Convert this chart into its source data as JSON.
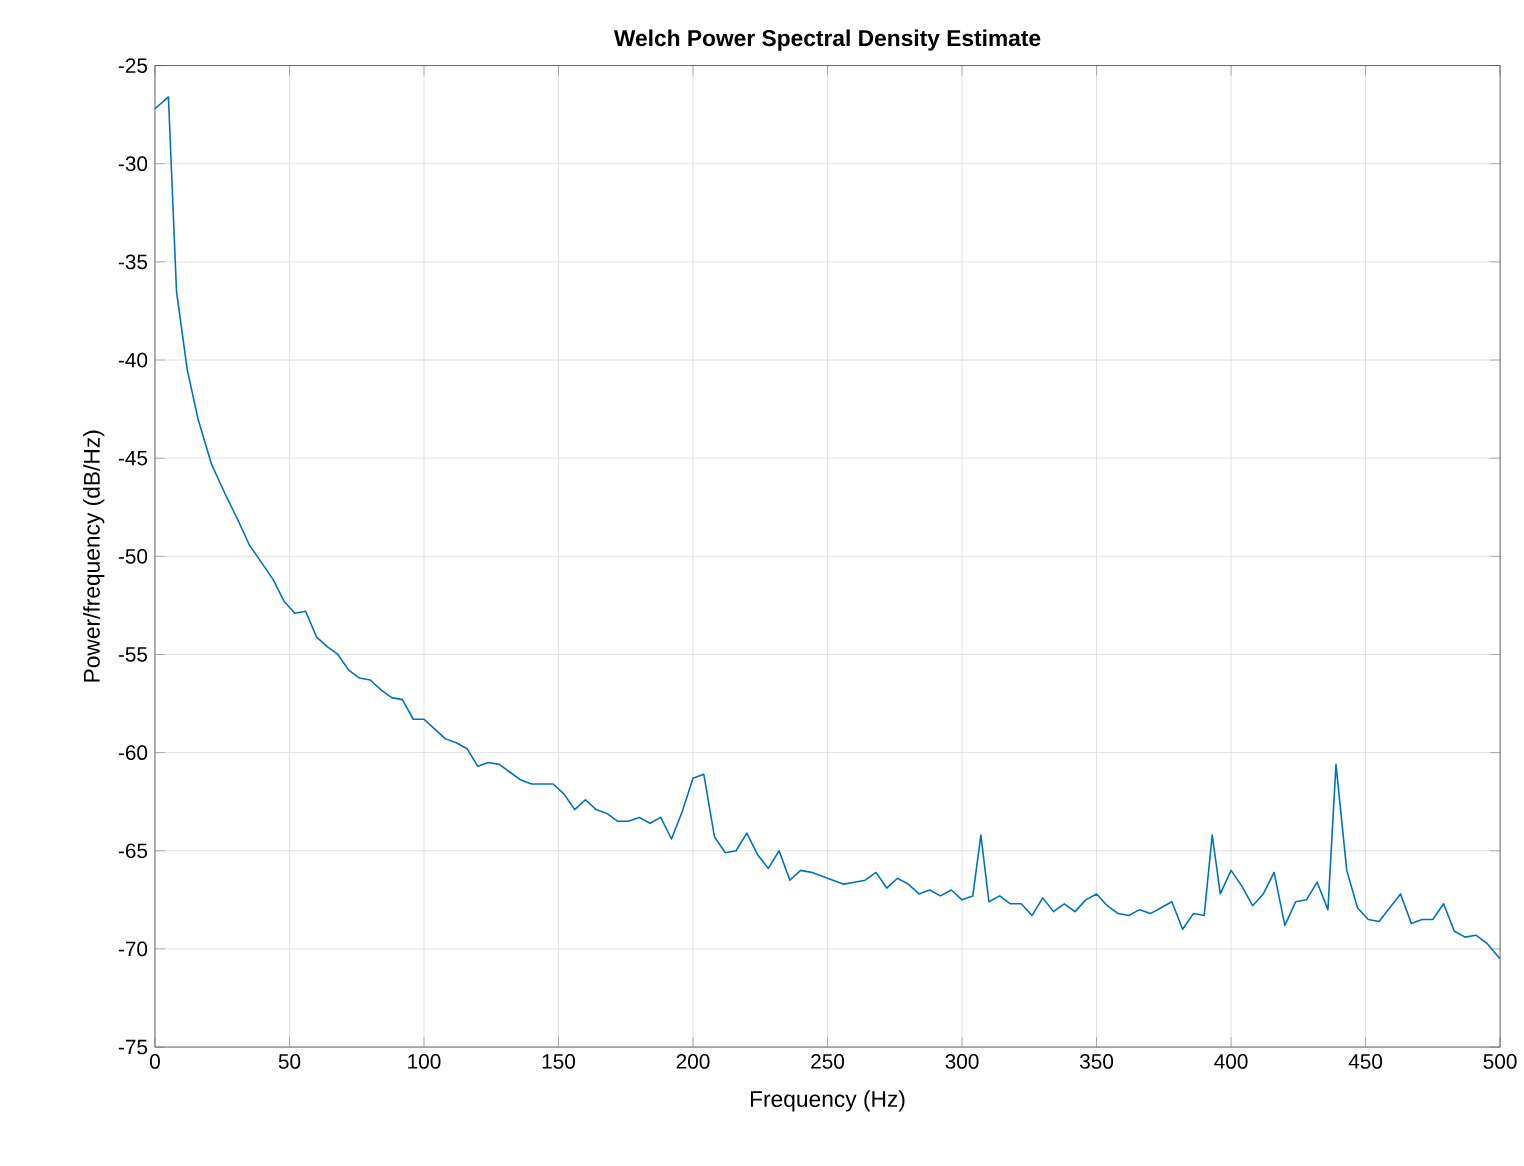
{
  "chart_data": {
    "type": "line",
    "title": "Welch Power Spectral Density Estimate",
    "xlabel": "Frequency (Hz)",
    "ylabel": "Power/frequency (dB/Hz)",
    "xlim": [
      0,
      500
    ],
    "ylim": [
      -75,
      -25
    ],
    "xticks": [
      0,
      50,
      100,
      150,
      200,
      250,
      300,
      350,
      400,
      450,
      500
    ],
    "yticks": [
      -75,
      -70,
      -65,
      -60,
      -55,
      -50,
      -45,
      -40,
      -35,
      -30,
      -25
    ],
    "grid": true,
    "marker": "none",
    "line_style": "solid",
    "series": [
      {
        "color": "#0072bd",
        "x": [
          0,
          5,
          8,
          12,
          16,
          21,
          26,
          31,
          35,
          40,
          44,
          48,
          52,
          56,
          60,
          64,
          68,
          72,
          76,
          80,
          84,
          88,
          92,
          96,
          100,
          104,
          108,
          112,
          116,
          120,
          124,
          128,
          132,
          136,
          140,
          144,
          148,
          152,
          156,
          160,
          164,
          168,
          172,
          176,
          180,
          184,
          188,
          192,
          196,
          200,
          204,
          208,
          212,
          216,
          220,
          224,
          228,
          232,
          236,
          240,
          244,
          248,
          252,
          256,
          260,
          264,
          268,
          272,
          276,
          280,
          284,
          288,
          292,
          296,
          300,
          304,
          307,
          310,
          314,
          318,
          322,
          326,
          330,
          334,
          338,
          342,
          346,
          350,
          354,
          358,
          362,
          366,
          370,
          374,
          378,
          382,
          386,
          390,
          393,
          396,
          400,
          404,
          408,
          412,
          416,
          420,
          424,
          428,
          432,
          436,
          439,
          443,
          447,
          451,
          455,
          459,
          463,
          467,
          471,
          475,
          479,
          483,
          487,
          491,
          495,
          500
        ],
        "values": [
          -27.2,
          -26.6,
          -36.5,
          -40.5,
          -43,
          -45.3,
          -46.8,
          -48.2,
          -49.4,
          -50.4,
          -51.2,
          -52.3,
          -52.9,
          -52.8,
          -54.1,
          -54.6,
          -55,
          -55.8,
          -56.2,
          -56.3,
          -56.8,
          -57.2,
          -57.3,
          -58.3,
          -58.3,
          -58.8,
          -59.3,
          -59.5,
          -59.8,
          -60.7,
          -60.5,
          -60.6,
          -61,
          -61.4,
          -61.6,
          -61.6,
          -61.6,
          -62.1,
          -62.9,
          -62.4,
          -62.9,
          -63.1,
          -63.5,
          -63.5,
          -63.3,
          -63.6,
          -63.3,
          -64.4,
          -63,
          -61.3,
          -61.1,
          -64.3,
          -65.1,
          -65,
          -64.1,
          -65.2,
          -65.9,
          -65,
          -66.5,
          -66,
          -66.1,
          -66.3,
          -66.5,
          -66.7,
          -66.6,
          -66.5,
          -66.1,
          -66.9,
          -66.4,
          -66.7,
          -67.2,
          -67,
          -67.3,
          -67,
          -67.5,
          -67.3,
          -64.2,
          -67.6,
          -67.3,
          -67.7,
          -67.7,
          -68.3,
          -67.4,
          -68.1,
          -67.7,
          -68.1,
          -67.5,
          -67.2,
          -67.8,
          -68.2,
          -68.3,
          -68,
          -68.2,
          -67.9,
          -67.6,
          -69,
          -68.2,
          -68.3,
          -64.2,
          -67.2,
          -66,
          -66.8,
          -67.8,
          -67.2,
          -66.1,
          -68.8,
          -67.6,
          -67.5,
          -66.6,
          -68,
          -60.6,
          -66,
          -67.9,
          -68.5,
          -68.6,
          -67.9,
          -67.2,
          -68.7,
          -68.5,
          -68.5,
          -67.7,
          -69.1,
          -69.4,
          -69.3,
          -69.7,
          -70.5
        ]
      }
    ]
  }
}
